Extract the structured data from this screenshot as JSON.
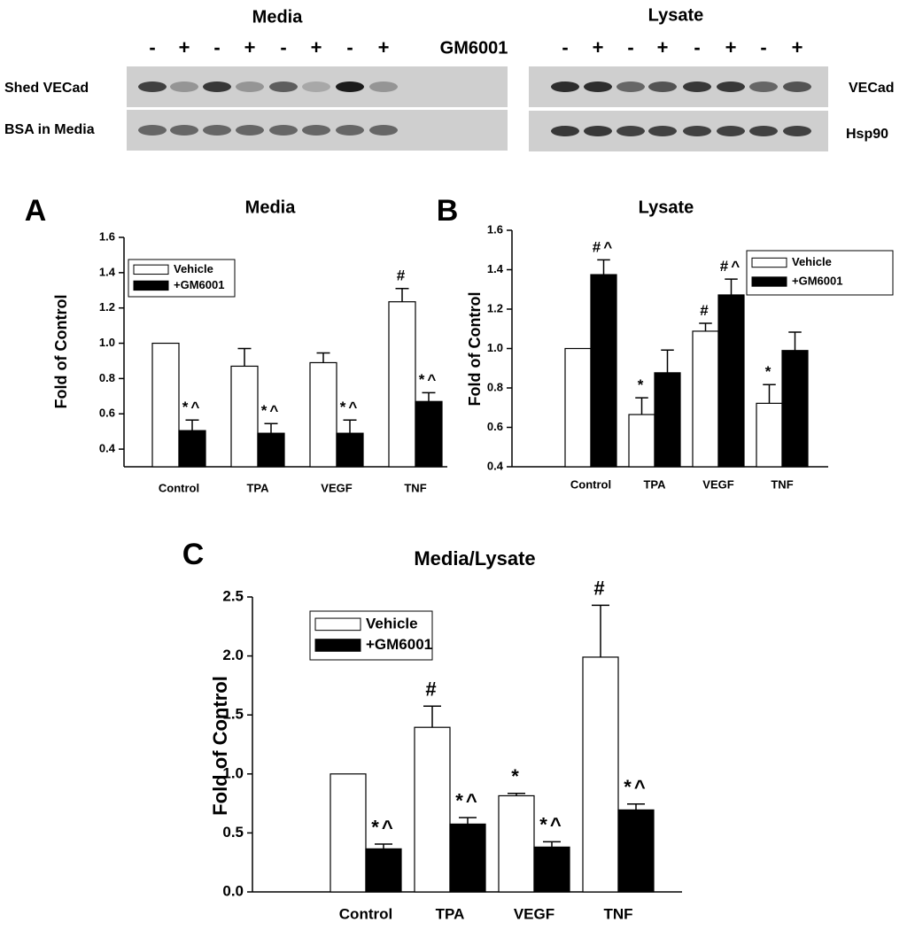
{
  "blots": {
    "media": {
      "title": "Media",
      "treatment_label": "GM6001",
      "lanes": [
        "-",
        "+",
        "-",
        "+",
        "-",
        "+",
        "-",
        "+"
      ],
      "rows": [
        "Shed VECad",
        "BSA in Media"
      ]
    },
    "lysate": {
      "title": "Lysate",
      "lanes": [
        "-",
        "+",
        "-",
        "+",
        "-",
        "+",
        "-",
        "+"
      ],
      "rows": [
        "VECad",
        "Hsp90"
      ]
    }
  },
  "chart_data": [
    {
      "type": "bar",
      "panel": "A",
      "title": "Media",
      "y_label": "Fold of Control",
      "categories": [
        "Control",
        "TPA",
        "VEGF",
        "TNF"
      ],
      "series": [
        {
          "name": "Vehicle",
          "color": "#ffffff",
          "values": [
            1.0,
            0.87,
            0.89,
            1.235
          ],
          "errors": [
            null,
            0.1,
            0.055,
            0.075
          ],
          "annotations": [
            null,
            null,
            null,
            "#"
          ]
        },
        {
          "name": "+GM6001",
          "color": "#000000",
          "values": [
            0.505,
            0.49,
            0.49,
            0.67
          ],
          "errors": [
            0.06,
            0.055,
            0.075,
            0.05
          ],
          "annotations": [
            "*^",
            "*^",
            "*^",
            "*^"
          ]
        }
      ],
      "ylim": [
        0.3,
        1.6
      ],
      "yticks": [
        0.4,
        0.6,
        0.8,
        {
          "value": 1,
          "label": "1.0"
        },
        1.2,
        1.4,
        1.6
      ],
      "legend": "upper-left"
    },
    {
      "type": "bar",
      "panel": "B",
      "title": "Lysate",
      "y_label": "Fold of Control",
      "categories": [
        "Control",
        "TPA",
        "VEGF",
        "TNF"
      ],
      "series": [
        {
          "name": "Vehicle",
          "color": "#ffffff",
          "values": [
            1.0,
            0.665,
            1.088,
            0.722
          ],
          "errors": [
            null,
            0.085,
            0.04,
            0.095
          ],
          "annotations": [
            null,
            "*",
            "#",
            "*"
          ]
        },
        {
          "name": "+GM6001",
          "color": "#000000",
          "values": [
            1.375,
            0.877,
            1.272,
            0.99
          ],
          "errors": [
            0.075,
            0.115,
            0.08,
            0.093
          ],
          "annotations": [
            "#^",
            null,
            "#^",
            null
          ]
        }
      ],
      "ylim": [
        0.4,
        1.6
      ],
      "yticks": [
        0.4,
        0.6,
        0.8,
        {
          "value": 1,
          "label": "1.0"
        },
        1.2,
        1.4,
        1.6
      ],
      "legend": "upper-right"
    },
    {
      "type": "bar",
      "panel": "C",
      "title": "Media/Lysate",
      "y_label": "Fold of Control",
      "categories": [
        "Control",
        "TPA",
        "VEGF",
        "TNF"
      ],
      "series": [
        {
          "name": "Vehicle",
          "color": "#ffffff",
          "values": [
            1.0,
            1.395,
            0.815,
            1.99
          ],
          "errors": [
            null,
            0.18,
            0.02,
            0.44
          ],
          "annotations": [
            null,
            "#",
            "*",
            "#"
          ]
        },
        {
          "name": "+GM6001",
          "color": "#000000",
          "values": [
            0.365,
            0.575,
            0.38,
            0.695
          ],
          "errors": [
            0.04,
            0.055,
            0.045,
            0.05
          ],
          "annotations": [
            "*^",
            "*^",
            "*^",
            "*^"
          ]
        }
      ],
      "ylim": [
        0,
        2.5
      ],
      "yticks": [
        {
          "value": 0,
          "label": "0.0"
        },
        0.5,
        {
          "value": 1,
          "label": "1.0"
        },
        1.5,
        {
          "value": 2,
          "label": "2.0"
        },
        2.5
      ],
      "legend": "upper-left"
    }
  ]
}
